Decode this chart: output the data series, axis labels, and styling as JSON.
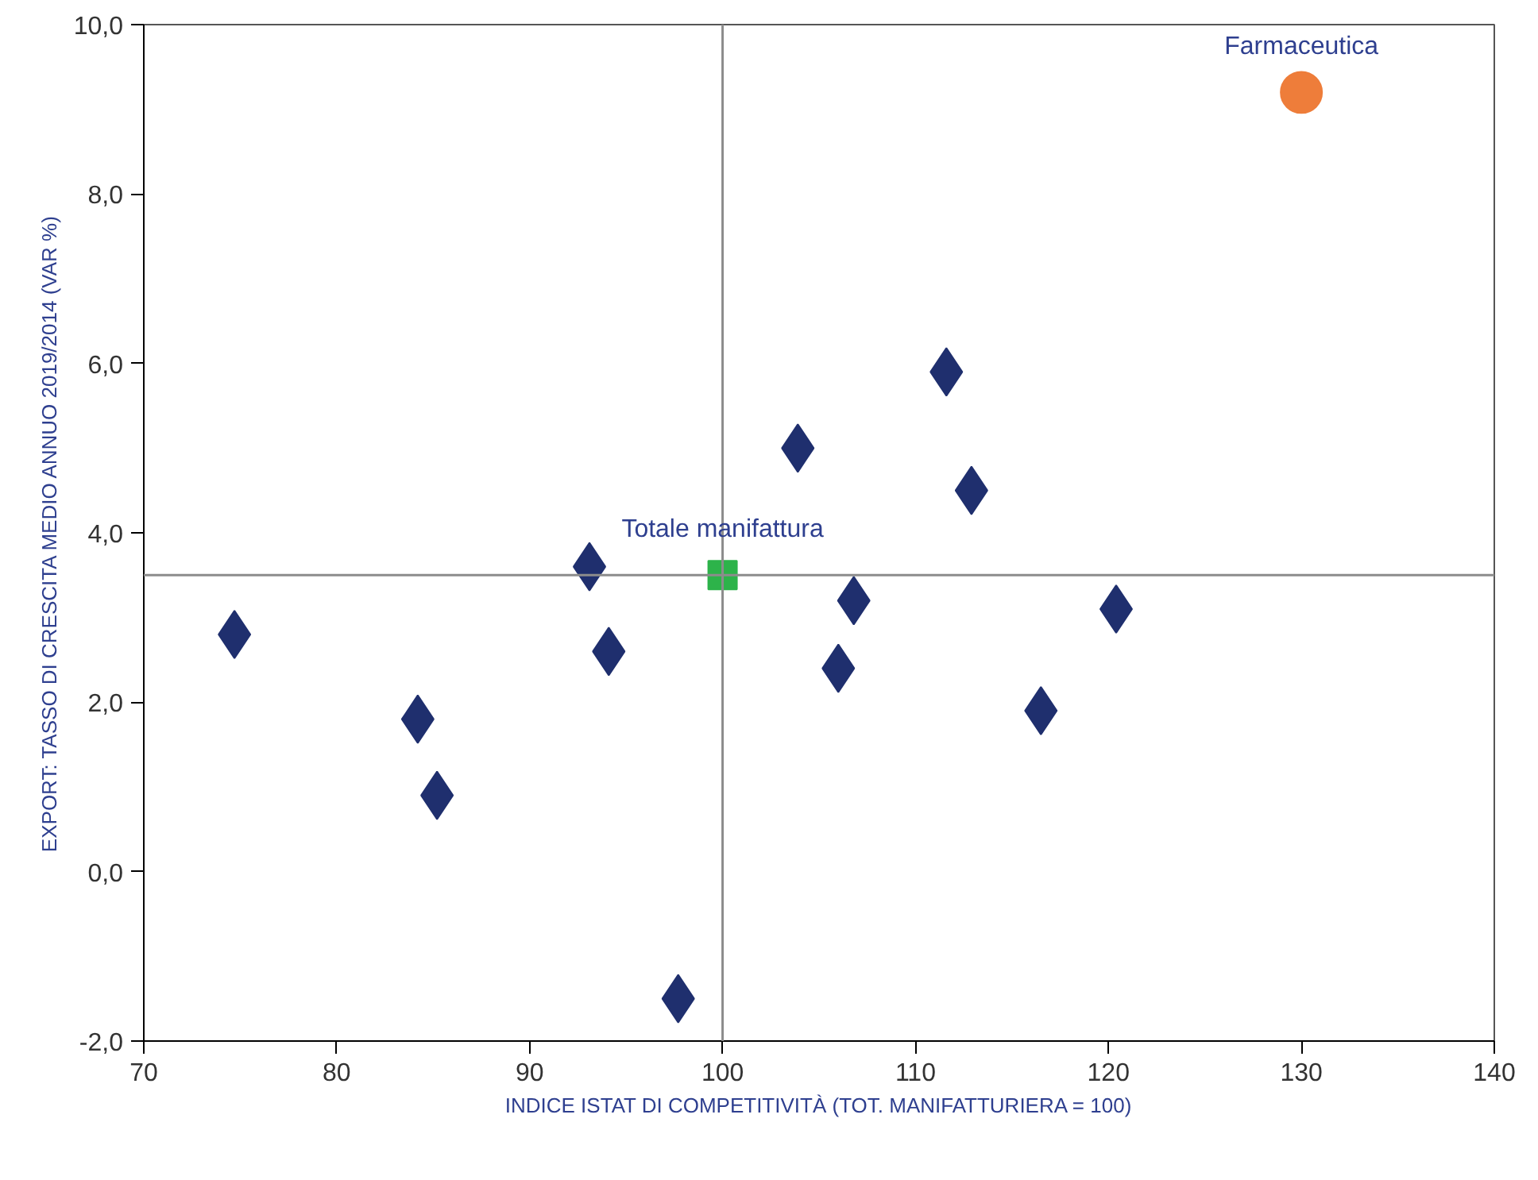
{
  "chart_data": {
    "type": "scatter",
    "xlabel": "INDICE ISTAT DI COMPETITIVITÀ (TOT. MANIFATTURIERA = 100)",
    "ylabel": "EXPORT: TASSO DI CRESCITA MEDIO ANNUO 2019/2014 (VAR %)",
    "xlim": [
      70,
      140
    ],
    "xticks": [
      70,
      80,
      90,
      100,
      110,
      120,
      130,
      140
    ],
    "ylim": [
      -2,
      10
    ],
    "yticks": [
      {
        "value": -2,
        "label": "-2,0"
      },
      {
        "value": 0,
        "label": "0,0"
      },
      {
        "value": 2,
        "label": "2,0"
      },
      {
        "value": 4,
        "label": "4,0"
      },
      {
        "value": 6,
        "label": "6,0"
      },
      {
        "value": 8,
        "label": "8,0"
      },
      {
        "value": 10,
        "label": "10,0"
      }
    ],
    "grid": false,
    "ref_lines": [
      {
        "axis": "x",
        "value": 100,
        "color": "#8c8c8c"
      },
      {
        "axis": "y",
        "value": 3.5,
        "color": "#8c8c8c"
      }
    ],
    "series": [
      {
        "color": "#1f2f6e",
        "marker": "diamond",
        "x": [
          74.7,
          84.2,
          85.2,
          93.1,
          94.1,
          97.7,
          103.9,
          106.0,
          106.8,
          111.6,
          112.9,
          116.5,
          120.4
        ],
        "values": [
          2.8,
          1.8,
          0.9,
          3.6,
          2.6,
          -1.5,
          5.0,
          2.4,
          3.2,
          5.9,
          4.5,
          1.9,
          3.1
        ]
      },
      {
        "name": "Totale manifattura",
        "color": "#2db34a",
        "marker": "square",
        "x": [
          100
        ],
        "values": [
          3.5
        ]
      },
      {
        "name": "Farmaceutica",
        "color": "#ee7d3a",
        "marker": "circle",
        "x": [
          130
        ],
        "values": [
          9.2
        ]
      }
    ]
  }
}
